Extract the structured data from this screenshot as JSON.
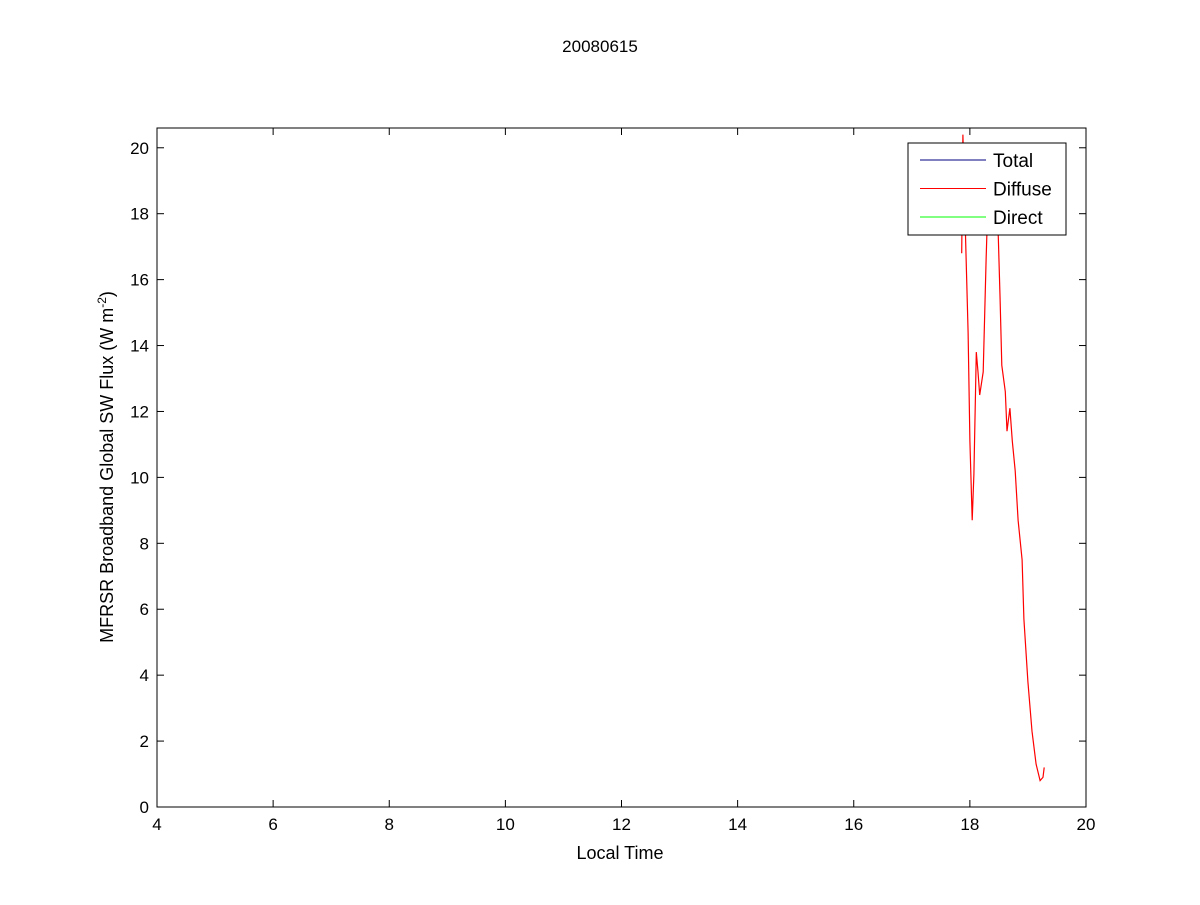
{
  "chart_data": {
    "type": "line",
    "title": "20080615",
    "xlabel": "Local Time",
    "ylabel": "MFRSR Broadband Global SW Flux (W m",
    "ylabel_sup": "-2",
    "ylabel_end": ")",
    "xlim": [
      4,
      20
    ],
    "ylim": [
      0,
      20.6
    ],
    "xticks": [
      4,
      6,
      8,
      10,
      12,
      14,
      16,
      18,
      20
    ],
    "yticks": [
      0,
      2,
      4,
      6,
      8,
      10,
      12,
      14,
      16,
      18,
      20
    ],
    "grid": false,
    "legend_position": "top-right",
    "series": [
      {
        "name": "Total",
        "color": "#000080",
        "x": [],
        "y": []
      },
      {
        "name": "Diffuse",
        "color": "#ff0000",
        "x": [
          17.86,
          17.88,
          17.93,
          17.97,
          18.0,
          18.04,
          18.07,
          18.11,
          18.14,
          18.17,
          18.23,
          18.28,
          18.31,
          18.35,
          18.42,
          18.49,
          18.52,
          18.55,
          18.61,
          18.64,
          18.69,
          18.73,
          18.78,
          18.83,
          18.9,
          18.93,
          19.0,
          19.07,
          19.14,
          19.21,
          19.26,
          19.28
        ],
        "y": [
          16.8,
          20.4,
          17.0,
          14.4,
          11.1,
          8.7,
          10.1,
          13.8,
          13.2,
          12.5,
          13.2,
          16.6,
          18.4,
          19.0,
          19.5,
          17.3,
          15.4,
          13.4,
          12.6,
          11.4,
          12.1,
          11.1,
          10.2,
          8.7,
          7.5,
          5.7,
          3.8,
          2.3,
          1.3,
          0.8,
          0.9,
          1.2
        ]
      },
      {
        "name": "Direct",
        "color": "#00ff00",
        "x": [],
        "y": []
      }
    ]
  }
}
